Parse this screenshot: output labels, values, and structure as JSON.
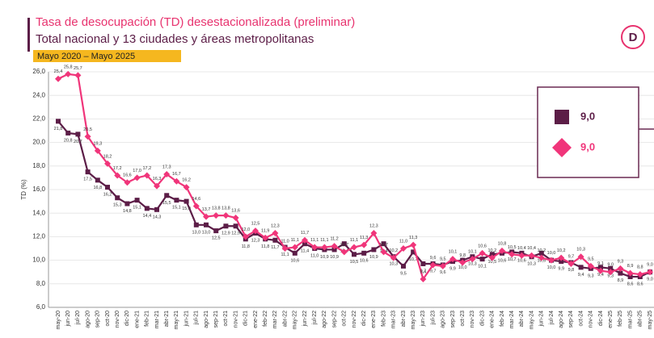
{
  "chart_data": {
    "type": "line",
    "title": "Tasa de desocupación (TD) desestacionalizada (preliminar)",
    "subtitle": "Total nacional y 13 ciudades y áreas metropolitanas",
    "period": "Mayo 2020 – Mayo 2025",
    "y_label": "TD (%)",
    "categories": [
      "may-20",
      "jun-20",
      "jul-20",
      "ago-20",
      "sep-20",
      "oct-20",
      "nov-20",
      "dic-20",
      "ene-21",
      "feb-21",
      "mar-21",
      "abr-21",
      "may-21",
      "jun-21",
      "jul-21",
      "ago-21",
      "sep-21",
      "oct-21",
      "nov-21",
      "dic-21",
      "ene-22",
      "feb-22",
      "mar-22",
      "abr-22",
      "may-22",
      "jun-22",
      "jul-22",
      "ago-22",
      "sep-22",
      "oct-22",
      "nov-22",
      "dic-22",
      "ene-23",
      "feb-23",
      "mar-23",
      "abr-23",
      "may-23",
      "jun-23",
      "jul-23",
      "ago-23",
      "sep-23",
      "oct-23",
      "nov-23",
      "dic-23",
      "ene-24",
      "feb-24",
      "mar-24",
      "abr-24",
      "may-24",
      "jun-24",
      "jul-24",
      "ago-24",
      "sep-24",
      "oct-24",
      "nov-24",
      "dic-24",
      "ene-25",
      "feb-25",
      "mar-25",
      "abr-25",
      "may-25"
    ],
    "series": [
      {
        "color": "#5c1d47",
        "marker": "square",
        "values": [
          21.8,
          20.8,
          20.7,
          17.5,
          16.8,
          16.2,
          15.3,
          14.8,
          15.1,
          14.4,
          14.3,
          15.5,
          15.1,
          15.0,
          13.0,
          13.0,
          12.5,
          12.9,
          12.9,
          11.8,
          12.3,
          11.8,
          11.7,
          11.1,
          10.6,
          11.4,
          11.0,
          10.9,
          10.9,
          11.4,
          10.5,
          10.6,
          10.9,
          11.4,
          10.3,
          9.5,
          10.7,
          9.7,
          9.7,
          9.6,
          9.9,
          10.0,
          10.3,
          10.1,
          10.5,
          10.6,
          10.7,
          10.6,
          10.3,
          10.6,
          10.0,
          9.9,
          9.8,
          9.4,
          9.3,
          9.4,
          9.3,
          8.9,
          8.6,
          8.6,
          9.0
        ],
        "value_labels": [
          "21,8",
          "20,8",
          "20,7",
          "17,5",
          "16,8",
          "16,2",
          "15,3",
          "14,8",
          "15,1",
          "14,4",
          "14,3",
          "15,5",
          "15,1",
          "15,0",
          "13,0",
          "13,0",
          "12,5",
          "12,9",
          "12,9",
          "11,8",
          "12,3",
          "11,8",
          "11,7",
          "11,1",
          "10,6",
          "11,4",
          "11,0",
          "10,9",
          "10,9",
          "11,4",
          "10,5",
          "10,6",
          "10,9",
          "11,4",
          "10,3",
          "9,5",
          "10,7",
          "9,7",
          "9,7",
          "9,6",
          "9,9",
          "10,0",
          "10,3",
          "10,1",
          "10,5",
          "10,6",
          "10,7",
          "10,6",
          "10,3",
          "10,6",
          "10,0",
          "9,9",
          "9,8",
          "9,4",
          "9,3",
          "9,4",
          "9,3",
          "8,9",
          "8,6",
          "8,6",
          "9,0"
        ]
      },
      {
        "color": "#f0357a",
        "marker": "diamond",
        "values": [
          25.4,
          25.8,
          25.7,
          20.5,
          19.3,
          18.2,
          17.2,
          16.6,
          17.0,
          17.2,
          16.3,
          17.3,
          16.7,
          16.2,
          14.6,
          13.7,
          13.8,
          13.8,
          13.6,
          12.0,
          12.5,
          11.9,
          12.3,
          11.0,
          11.1,
          11.7,
          11.1,
          11.1,
          11.2,
          10.7,
          11.1,
          11.3,
          12.3,
          10.7,
          10.2,
          11.0,
          11.3,
          8.4,
          9.6,
          9.5,
          10.1,
          9.8,
          10.1,
          10.6,
          10.2,
          10.8,
          10.5,
          10.4,
          10.4,
          10.2,
          10.0,
          10.2,
          9.7,
          10.3,
          9.5,
          9.1,
          9.0,
          9.3,
          8.9,
          8.8,
          9.0
        ],
        "value_labels": [
          "25,4",
          "25,8",
          "25,7",
          "20,5",
          "19,3",
          "18,2",
          "17,2",
          "16,6",
          "17,0",
          "17,2",
          "16,3",
          "17,3",
          "16,7",
          "16,2",
          "14,6",
          "13,7",
          "13,8",
          "13,8",
          "13,6",
          "12,0",
          "12,5",
          "11,9",
          "12,3",
          "11,0",
          "11,1",
          "11,7",
          "11,1",
          "11,1",
          "11,2",
          "10,7",
          "11,1",
          "11,3",
          "12,3",
          "10,7",
          "10,2",
          "11,0",
          "11,3",
          "8,4",
          "9,6",
          "9,5",
          "10,1",
          "9,8",
          "10,1",
          "10,6",
          "10,2",
          "10,8",
          "10,5",
          "10,4",
          "10,4",
          "10,2",
          "10,0",
          "10,2",
          "9,7",
          "10,3",
          "9,5",
          "9,1",
          "9,0",
          "9,3",
          "8,9",
          "8,8",
          "9,0"
        ]
      }
    ],
    "highlight_labels": [
      "9,0",
      "9,0"
    ],
    "ylim": [
      6,
      26
    ],
    "yticks": [
      {
        "value": 6,
        "label": "6,0"
      },
      {
        "value": 8,
        "label": "8,0"
      },
      {
        "value": 10,
        "label": "10,0"
      },
      {
        "value": 12,
        "label": "12,0"
      },
      {
        "value": 14,
        "label": "14,0"
      },
      {
        "value": 16,
        "label": "16,0"
      },
      {
        "value": 18,
        "label": "18,0"
      },
      {
        "value": 20,
        "label": "20,0"
      },
      {
        "value": 22,
        "label": "22,0"
      },
      {
        "value": 24,
        "label": "24,0"
      },
      {
        "value": 26,
        "label": "26,0"
      }
    ],
    "grid": true
  }
}
